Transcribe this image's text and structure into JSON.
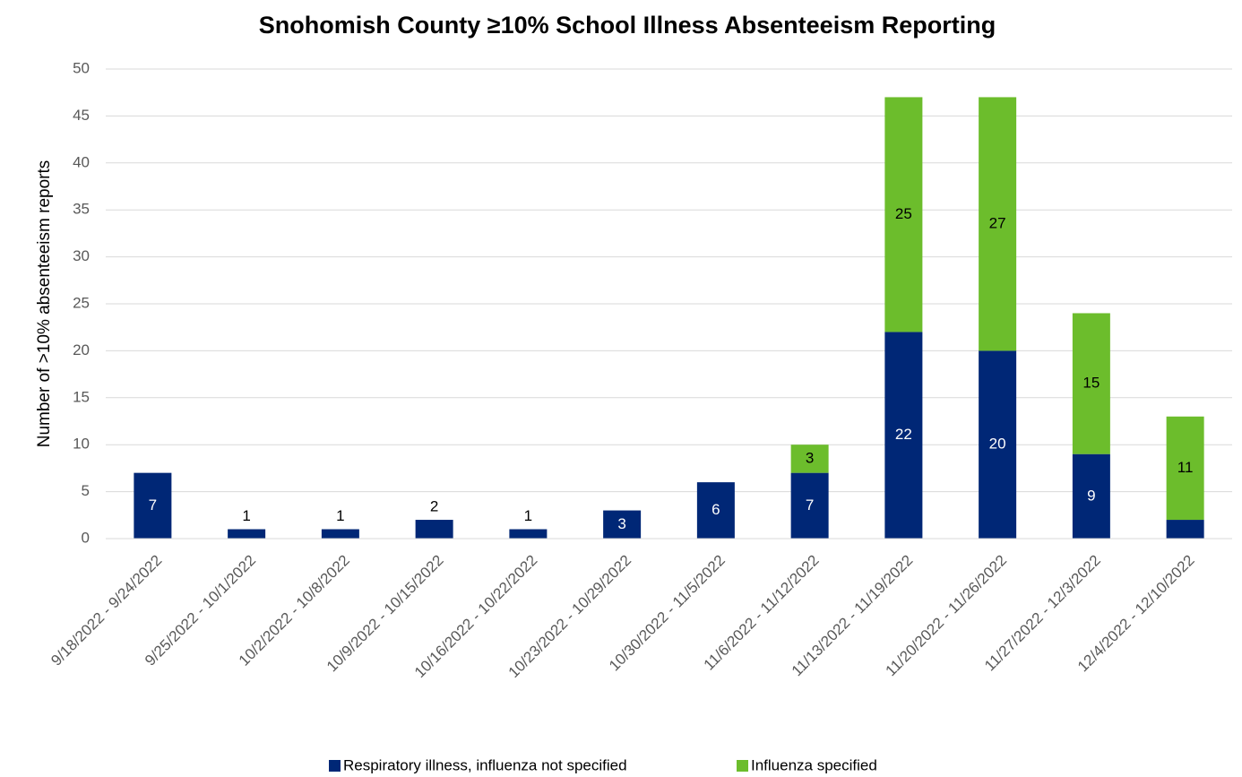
{
  "chart_data": {
    "type": "stacked_bar",
    "title": "Snohomish County ≥10% School Illness Absenteeism Reporting",
    "y_label": "Number of >10% absenteeism reports",
    "categories": [
      "9/18/2022 - 9/24/2022",
      "9/25/2022 - 10/1/2022",
      "10/2/2022 - 10/8/2022",
      "10/9/2022 - 10/15/2022",
      "10/16/2022 - 10/22/2022",
      "10/23/2022 - 10/29/2022",
      "10/30/2022 - 11/5/2022",
      "11/6/2022 - 11/12/2022",
      "11/13/2022 - 11/19/2022",
      "11/20/2022 - 11/26/2022",
      "11/27/2022 - 12/3/2022",
      "12/4/2022 - 12/10/2022"
    ],
    "series": [
      {
        "name": "Respiratory illness, influenza not specified",
        "color": "#002776",
        "values": [
          7,
          1,
          1,
          2,
          1,
          3,
          6,
          7,
          22,
          20,
          9,
          2
        ]
      },
      {
        "name": "Influenza specified",
        "color": "#6cbd2c",
        "values": [
          0,
          0,
          0,
          0,
          0,
          0,
          0,
          3,
          25,
          27,
          15,
          11
        ]
      }
    ],
    "ylim": [
      0,
      50
    ],
    "yticks": [
      0,
      5,
      10,
      15,
      20,
      25,
      30,
      35,
      40,
      45,
      50
    ],
    "grid": true,
    "legend": "bottom"
  }
}
